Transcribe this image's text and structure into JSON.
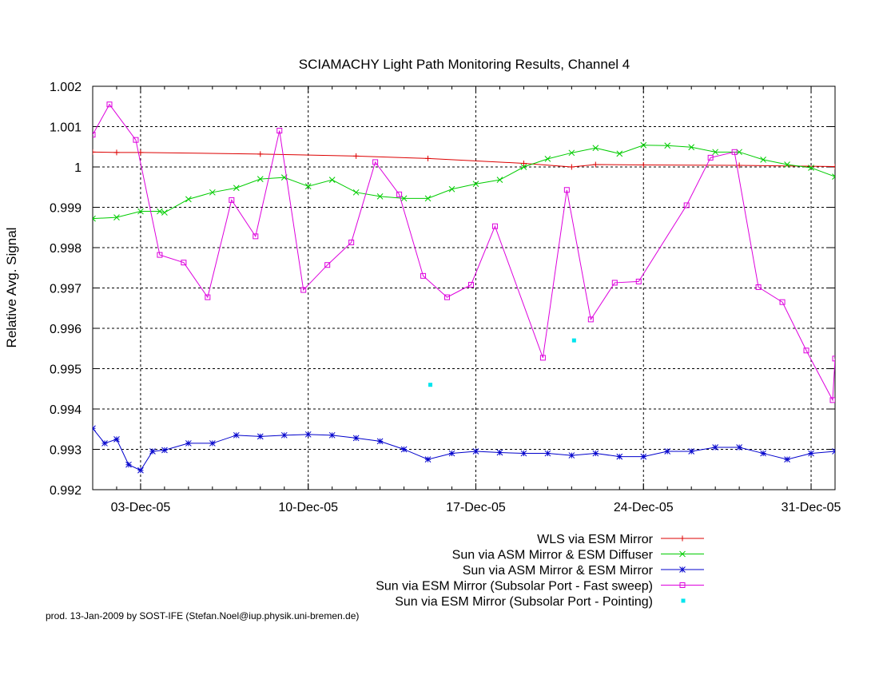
{
  "chart_data": {
    "type": "line",
    "title": "SCIAMACHY Light Path Monitoring Results, Channel 4",
    "xlabel": "",
    "ylabel": "Relative Avg. Signal",
    "xlim": [
      "2005-12-01",
      "2006-01-01"
    ],
    "ylim": [
      0.992,
      1.002
    ],
    "yticks": [
      "0.992",
      "0.993",
      "0.994",
      "0.995",
      "0.996",
      "0.997",
      "0.998",
      "0.999",
      "1",
      "1.001",
      "1.002"
    ],
    "xticks": [
      {
        "date": "2005-12-03",
        "label": "03-Dec-05"
      },
      {
        "date": "2005-12-10",
        "label": "10-Dec-05"
      },
      {
        "date": "2005-12-17",
        "label": "17-Dec-05"
      },
      {
        "date": "2005-12-24",
        "label": "24-Dec-05"
      },
      {
        "date": "2005-12-31",
        "label": "31-Dec-05"
      }
    ],
    "grid": true,
    "legend_position": "bottom-right",
    "series": [
      {
        "name": "WLS via ESM Mirror",
        "color": "#dd0000",
        "style": "line-plus",
        "x": [
          "2005-12-01",
          "2005-12-02",
          "2005-12-03",
          "2005-12-08",
          "2005-12-12",
          "2005-12-15",
          "2005-12-19",
          "2005-12-21",
          "2005-12-22",
          "2005-12-24",
          "2005-12-28",
          "2006-01-01"
        ],
        "y": [
          1.00037,
          1.00036,
          1.00036,
          1.00032,
          1.00027,
          1.00021,
          1.00009,
          1.0,
          1.00006,
          1.00005,
          1.00004,
          1.00001
        ]
      },
      {
        "name": "Sun via ASM Mirror & ESM Diffuser",
        "color": "#00cc00",
        "style": "line-x",
        "x": [
          "2005-12-01",
          "2005-12-02",
          "2005-12-03",
          "2005-12-03.8",
          "2005-12-04",
          "2005-12-05",
          "2005-12-06",
          "2005-12-07",
          "2005-12-08",
          "2005-12-09",
          "2005-12-10",
          "2005-12-11",
          "2005-12-12",
          "2005-12-13",
          "2005-12-14",
          "2005-12-15",
          "2005-12-16",
          "2005-12-17",
          "2005-12-18",
          "2005-12-19",
          "2005-12-20",
          "2005-12-21",
          "2005-12-22",
          "2005-12-23",
          "2005-12-24",
          "2005-12-25",
          "2005-12-26",
          "2005-12-27",
          "2005-12-28",
          "2005-12-29",
          "2005-12-30",
          "2005-12-31",
          "2006-01-01"
        ],
        "y": [
          0.99872,
          0.99875,
          0.9989,
          0.9989,
          0.99887,
          0.9992,
          0.99937,
          0.99948,
          0.9997,
          0.99974,
          0.99952,
          0.99968,
          0.99937,
          0.99927,
          0.99922,
          0.99922,
          0.99945,
          0.99958,
          0.99968,
          1.0,
          1.0002,
          1.00035,
          1.00047,
          1.00033,
          1.00054,
          1.00053,
          1.00049,
          1.00037,
          1.00037,
          1.00018,
          1.00006,
          0.99998,
          0.99976
        ]
      },
      {
        "name": "Sun via ASM Mirror & ESM Mirror",
        "color": "#0000cc",
        "style": "line-star",
        "x": [
          "2005-12-01",
          "2005-12-01.5",
          "2005-12-02",
          "2005-12-02.5",
          "2005-12-03",
          "2005-12-03.5",
          "2005-12-04",
          "2005-12-05",
          "2005-12-06",
          "2005-12-07",
          "2005-12-08",
          "2005-12-09",
          "2005-12-10",
          "2005-12-11",
          "2005-12-12",
          "2005-12-13",
          "2005-12-14",
          "2005-12-15",
          "2005-12-16",
          "2005-12-17",
          "2005-12-18",
          "2005-12-19",
          "2005-12-20",
          "2005-12-21",
          "2005-12-22",
          "2005-12-23",
          "2005-12-24",
          "2005-12-25",
          "2005-12-26",
          "2005-12-27",
          "2005-12-28",
          "2005-12-29",
          "2005-12-30",
          "2005-12-31",
          "2006-01-01"
        ],
        "y": [
          0.99352,
          0.99315,
          0.99325,
          0.99262,
          0.99248,
          0.99295,
          0.99298,
          0.99315,
          0.99315,
          0.99335,
          0.99332,
          0.99335,
          0.99337,
          0.99335,
          0.99328,
          0.9932,
          0.993,
          0.99275,
          0.9929,
          0.99295,
          0.99292,
          0.9929,
          0.9929,
          0.99285,
          0.9929,
          0.99282,
          0.99282,
          0.99295,
          0.99295,
          0.99305,
          0.99305,
          0.9929,
          0.99275,
          0.9929,
          0.99295
        ]
      },
      {
        "name": "Sun via ESM Mirror (Subsolar Port - Fast sweep)",
        "color": "#dd00dd",
        "style": "line-square",
        "x": [
          "2005-12-01",
          "2005-12-01.7",
          "2005-12-02.8",
          "2005-12-03.8",
          "2005-12-04.8",
          "2005-12-05.8",
          "2005-12-06.8",
          "2005-12-07.8",
          "2005-12-08.8",
          "2005-12-09.8",
          "2005-12-10.8",
          "2005-12-11.8",
          "2005-12-12.8",
          "2005-12-13.8",
          "2005-12-14.8",
          "2005-12-15.8",
          "2005-12-16.8",
          "2005-12-17.8",
          "2005-12-19.8",
          "2005-12-20.8",
          "2005-12-21.8",
          "2005-12-22.8",
          "2005-12-23.8",
          "2005-12-25.8",
          "2005-12-26.8",
          "2005-12-27.8",
          "2005-12-28.8",
          "2005-12-29.8",
          "2005-12-30.8",
          "2005-12-31.9",
          "2006-01-01"
        ],
        "y": [
          1.0008,
          1.00155,
          1.00067,
          0.99782,
          0.99763,
          0.99677,
          0.99918,
          0.99828,
          1.0009,
          0.99695,
          0.99757,
          0.99813,
          1.00012,
          0.99932,
          0.9973,
          0.99677,
          0.99708,
          0.99853,
          0.99527,
          0.99943,
          0.99622,
          0.99713,
          0.99716,
          0.99905,
          1.00023,
          1.00037,
          0.99702,
          0.99665,
          0.99545,
          0.99422,
          0.99525
        ]
      },
      {
        "name": "Sun via ESM Mirror (Subsolar Port - Pointing)",
        "color": "#00e5ee",
        "style": "points",
        "x": [
          "2005-12-15.1",
          "2005-12-21.1"
        ],
        "y": [
          0.9946,
          0.9957
        ]
      }
    ]
  },
  "footer": "prod. 13-Jan-2009 by SOST-IFE (Stefan.Noel@iup.physik.uni-bremen.de)"
}
